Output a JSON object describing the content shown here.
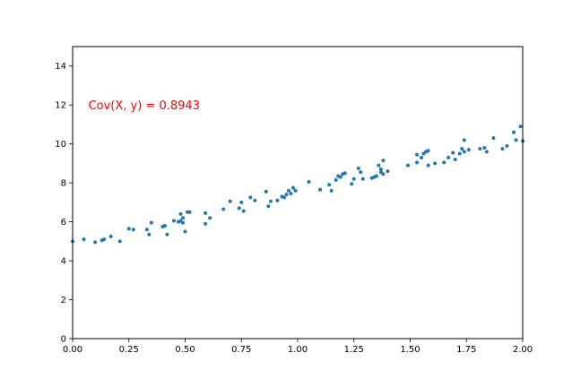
{
  "chart_data": {
    "type": "scatter",
    "title": "",
    "xlabel": "",
    "ylabel": "",
    "xlim": [
      0,
      2
    ],
    "ylim": [
      0,
      15
    ],
    "xticks": [
      "0.00",
      "0.25",
      "0.50",
      "0.75",
      "1.00",
      "1.25",
      "1.50",
      "1.75",
      "2.00"
    ],
    "yticks": [
      "0",
      "2",
      "4",
      "6",
      "8",
      "10",
      "12",
      "14"
    ],
    "grid": false,
    "series": [
      {
        "color": "#1f77b4",
        "points": [
          [
            0.0,
            5.0
          ],
          [
            0.05,
            5.1
          ],
          [
            0.1,
            4.95
          ],
          [
            0.13,
            5.05
          ],
          [
            0.14,
            5.1
          ],
          [
            0.17,
            5.25
          ],
          [
            0.21,
            5.0
          ],
          [
            0.25,
            5.65
          ],
          [
            0.27,
            5.6
          ],
          [
            0.33,
            5.6
          ],
          [
            0.34,
            5.35
          ],
          [
            0.35,
            5.95
          ],
          [
            0.4,
            5.75
          ],
          [
            0.41,
            5.8
          ],
          [
            0.42,
            5.35
          ],
          [
            0.45,
            6.05
          ],
          [
            0.47,
            6.0
          ],
          [
            0.48,
            6.4
          ],
          [
            0.48,
            6.05
          ],
          [
            0.49,
            5.95
          ],
          [
            0.49,
            6.2
          ],
          [
            0.5,
            5.5
          ],
          [
            0.51,
            6.5
          ],
          [
            0.52,
            6.5
          ],
          [
            0.59,
            6.45
          ],
          [
            0.59,
            5.9
          ],
          [
            0.61,
            6.2
          ],
          [
            0.67,
            6.65
          ],
          [
            0.7,
            7.05
          ],
          [
            0.74,
            6.7
          ],
          [
            0.75,
            7.0
          ],
          [
            0.76,
            6.55
          ],
          [
            0.79,
            7.25
          ],
          [
            0.81,
            7.1
          ],
          [
            0.86,
            7.55
          ],
          [
            0.87,
            6.8
          ],
          [
            0.88,
            7.05
          ],
          [
            0.91,
            7.1
          ],
          [
            0.93,
            7.3
          ],
          [
            0.94,
            7.25
          ],
          [
            0.95,
            7.4
          ],
          [
            0.96,
            7.6
          ],
          [
            0.97,
            7.45
          ],
          [
            0.98,
            7.75
          ],
          [
            0.99,
            7.6
          ],
          [
            1.05,
            8.05
          ],
          [
            1.1,
            7.65
          ],
          [
            1.14,
            7.9
          ],
          [
            1.15,
            7.6
          ],
          [
            1.17,
            8.15
          ],
          [
            1.18,
            8.35
          ],
          [
            1.19,
            8.3
          ],
          [
            1.2,
            8.45
          ],
          [
            1.21,
            8.5
          ],
          [
            1.24,
            7.95
          ],
          [
            1.25,
            8.2
          ],
          [
            1.27,
            8.75
          ],
          [
            1.28,
            8.55
          ],
          [
            1.29,
            8.2
          ],
          [
            1.33,
            8.25
          ],
          [
            1.34,
            8.3
          ],
          [
            1.35,
            8.35
          ],
          [
            1.36,
            8.9
          ],
          [
            1.37,
            8.55
          ],
          [
            1.37,
            8.7
          ],
          [
            1.38,
            9.15
          ],
          [
            1.38,
            8.45
          ],
          [
            1.4,
            8.6
          ],
          [
            1.49,
            8.9
          ],
          [
            1.53,
            9.05
          ],
          [
            1.53,
            9.45
          ],
          [
            1.55,
            9.3
          ],
          [
            1.56,
            9.5
          ],
          [
            1.57,
            9.6
          ],
          [
            1.58,
            9.65
          ],
          [
            1.58,
            8.9
          ],
          [
            1.61,
            9.0
          ],
          [
            1.65,
            9.05
          ],
          [
            1.67,
            9.3
          ],
          [
            1.69,
            9.55
          ],
          [
            1.7,
            9.2
          ],
          [
            1.72,
            9.5
          ],
          [
            1.73,
            9.75
          ],
          [
            1.74,
            10.2
          ],
          [
            1.74,
            9.6
          ],
          [
            1.76,
            9.7
          ],
          [
            1.81,
            9.75
          ],
          [
            1.83,
            9.8
          ],
          [
            1.84,
            9.6
          ],
          [
            1.87,
            10.3
          ],
          [
            1.91,
            9.75
          ],
          [
            1.93,
            9.9
          ],
          [
            1.96,
            10.6
          ],
          [
            1.97,
            10.2
          ],
          [
            1.99,
            10.9
          ],
          [
            2.0,
            10.15
          ]
        ]
      }
    ],
    "annotations": [
      {
        "text": "Cov(X, y) = 0.8943",
        "x": 0.07,
        "y": 12.0,
        "color": "#ff0000"
      }
    ]
  }
}
